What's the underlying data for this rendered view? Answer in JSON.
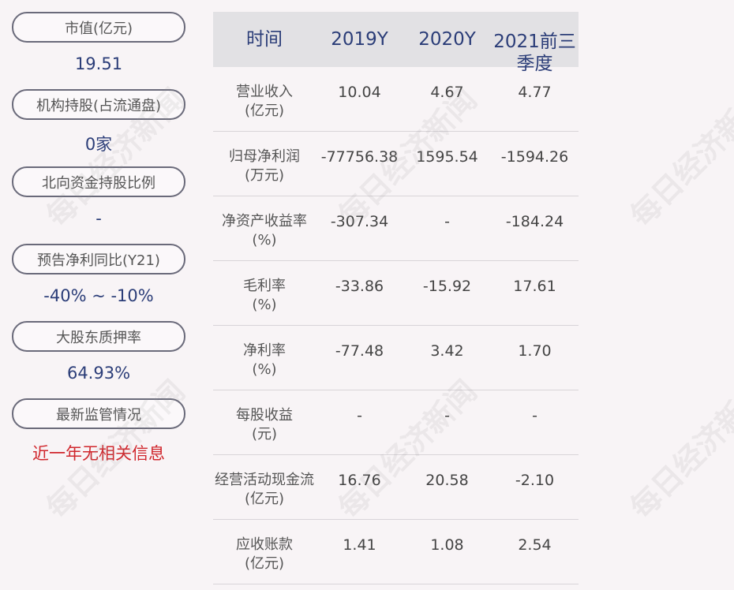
{
  "left_panel": [
    {
      "label": "市值(亿元)",
      "value": "19.51",
      "red": false
    },
    {
      "label": "机构持股(占流通盘)",
      "value": "0家",
      "red": false
    },
    {
      "label": "北向资金持股比例",
      "value": "-",
      "red": false
    },
    {
      "label": "预告净利同比(Y21)",
      "value": "-40% ~ -10%",
      "red": false
    },
    {
      "label": "大股东质押率",
      "value": "64.93%",
      "red": false
    },
    {
      "label": "最新监管情况",
      "value": "近一年无相关信息",
      "red": true
    }
  ],
  "table": {
    "headers": [
      "时间",
      "2019Y",
      "2020Y",
      "2021前三季度"
    ],
    "rows": [
      {
        "label": "营业收入\n(亿元)",
        "values": [
          "10.04",
          "4.67",
          "4.77"
        ]
      },
      {
        "label": "归母净利润\n(万元)",
        "values": [
          "-77756.38",
          "1595.54",
          "-1594.26"
        ]
      },
      {
        "label": "净资产收益率\n(%)",
        "values": [
          "-307.34",
          "-",
          "-184.24"
        ]
      },
      {
        "label": "毛利率\n(%)",
        "values": [
          "-33.86",
          "-15.92",
          "17.61"
        ]
      },
      {
        "label": "净利率\n(%)",
        "values": [
          "-77.48",
          "3.42",
          "1.70"
        ]
      },
      {
        "label": "每股收益\n(元)",
        "values": [
          "-",
          "-",
          "-"
        ]
      },
      {
        "label": "经营活动现金流\n(亿元)",
        "values": [
          "16.76",
          "20.58",
          "-2.10"
        ]
      },
      {
        "label": "应收账款\n(亿元)",
        "values": [
          "1.41",
          "1.08",
          "2.54"
        ]
      }
    ]
  },
  "watermark": "每日经济新闻",
  "colors": {
    "accent": "#2b3d78",
    "alert": "#d0262c",
    "header_bg": "#e2e1e4",
    "page_bg": "#f8f4f6"
  }
}
